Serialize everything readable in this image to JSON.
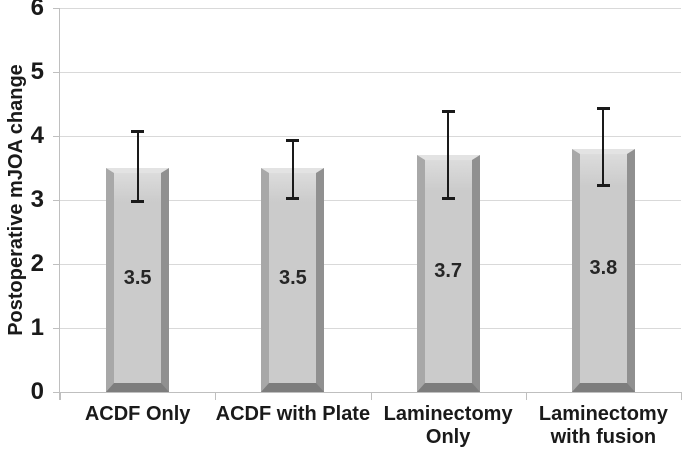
{
  "chart_data": {
    "type": "bar",
    "title": "",
    "xlabel": "",
    "ylabel": "Postoperative mJOA change",
    "ylim": [
      0,
      6
    ],
    "yticks": [
      0,
      1,
      2,
      3,
      4,
      5,
      6
    ],
    "grid": true,
    "legend": "none",
    "categories": [
      "ACDF Only",
      "ACDF with Plate",
      "Laminectomy\nOnly",
      "Laminectomy\nwith fusion"
    ],
    "values": [
      3.5,
      3.5,
      3.7,
      3.8
    ],
    "bar_labels": [
      "3.5",
      "3.5",
      "3.7",
      "3.8"
    ],
    "error_bars": {
      "whisker_low": [
        2.95,
        3.0,
        3.0,
        3.2
      ],
      "whisker_high": [
        4.1,
        3.95,
        4.4,
        4.45
      ]
    }
  },
  "colors": {
    "background": "#ffffff",
    "text": "#1a1a1a",
    "gridline": "#d9d9d9",
    "axis_line": "#bfbfbf",
    "bar_fill_top": "#dcdcdc",
    "bar_fill": "#cbcbcb",
    "bar_bevel_top": "#e3e3e3",
    "bar_bevel_left": "#a8a8a8",
    "bar_bevel_right": "#909090",
    "bar_bevel_bottom": "#7d7d7d",
    "error_bar": "#1a1a1a"
  }
}
